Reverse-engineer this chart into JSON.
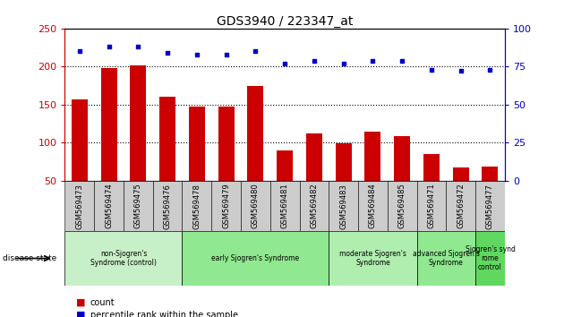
{
  "title": "GDS3940 / 223347_at",
  "samples": [
    "GSM569473",
    "GSM569474",
    "GSM569475",
    "GSM569476",
    "GSM569478",
    "GSM569479",
    "GSM569480",
    "GSM569481",
    "GSM569482",
    "GSM569483",
    "GSM569484",
    "GSM569485",
    "GSM569471",
    "GSM569472",
    "GSM569477"
  ],
  "counts": [
    157,
    198,
    201,
    160,
    148,
    148,
    175,
    90,
    112,
    99,
    115,
    109,
    85,
    67,
    69
  ],
  "percentiles": [
    85,
    88,
    88,
    84,
    83,
    83,
    85,
    77,
    79,
    77,
    79,
    79,
    73,
    72,
    73
  ],
  "ylim_left": [
    50,
    250
  ],
  "ylim_right": [
    0,
    100
  ],
  "yticks_left": [
    50,
    100,
    150,
    200,
    250
  ],
  "yticks_right": [
    0,
    25,
    50,
    75,
    100
  ],
  "groups": [
    {
      "label": "non-Sjogren's\nSyndrome (control)",
      "start": 0,
      "end": 4,
      "color": "#c8f0c8"
    },
    {
      "label": "early Sjogren's Syndrome",
      "start": 4,
      "end": 9,
      "color": "#90e890"
    },
    {
      "label": "moderate Sjogren's\nSyndrome",
      "start": 9,
      "end": 12,
      "color": "#b0eeb0"
    },
    {
      "label": "advanced Sjogren's\nSyndrome",
      "start": 12,
      "end": 14,
      "color": "#90e890"
    },
    {
      "label": "Sjogren's synd\nrome\ncontrol",
      "start": 14,
      "end": 15,
      "color": "#60d860"
    }
  ],
  "bar_color": "#cc0000",
  "dot_color": "#0000cc",
  "bar_width": 0.55,
  "tick_label_color_left": "#cc0000",
  "tick_label_color_right": "#0000cc",
  "sample_box_color": "#cccccc",
  "dotted_lines": [
    100,
    150,
    200
  ],
  "disease_state_label": "disease state",
  "legend_items": [
    {
      "color": "#cc0000",
      "label": "count"
    },
    {
      "color": "#0000cc",
      "label": "percentile rank within the sample"
    }
  ]
}
